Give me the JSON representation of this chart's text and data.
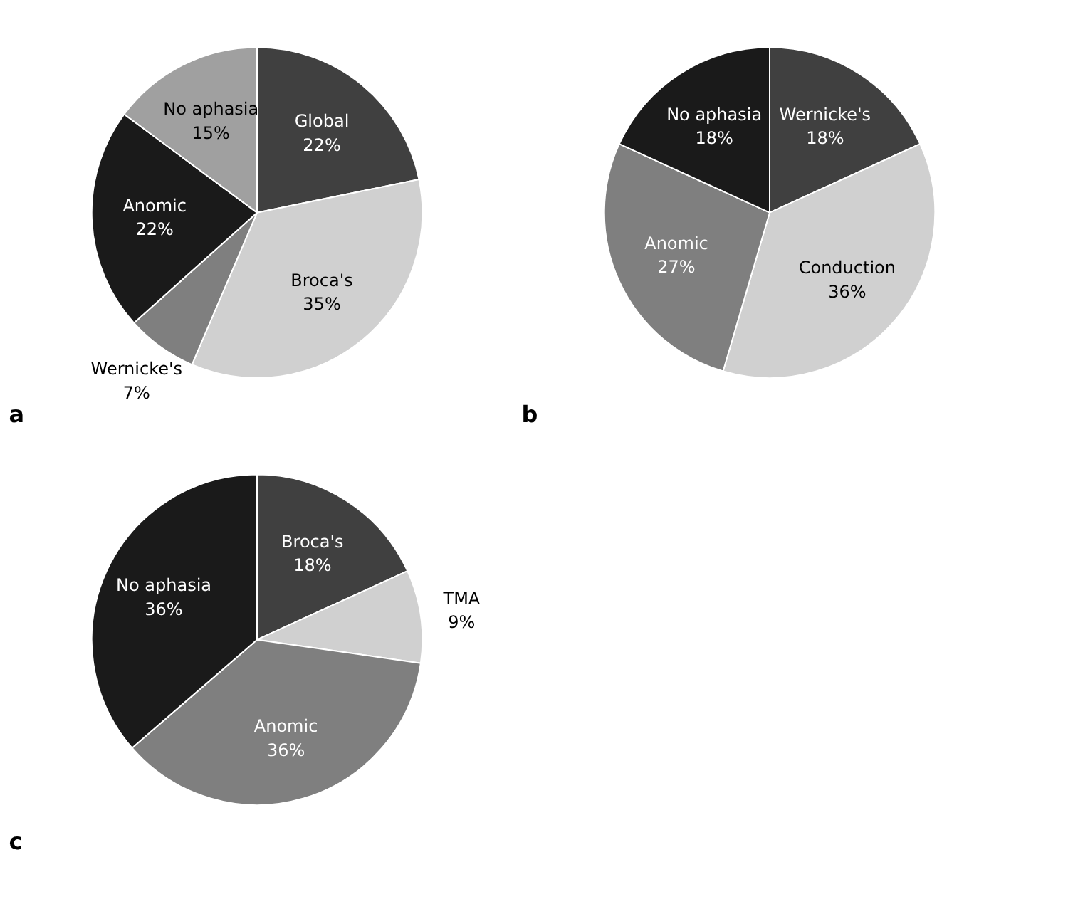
{
  "chart_data": [
    {
      "type": "pie",
      "annotations": [
        "a"
      ],
      "categories": [
        "Global",
        "Broca's",
        "Wernicke's",
        "Anomic",
        "No aphasia"
      ],
      "values": [
        22,
        35,
        7,
        22,
        15
      ],
      "value_labels": [
        "22%",
        "35%",
        "7%",
        "22%",
        "15%"
      ],
      "colors": [
        "#404040",
        "#d0d0d0",
        "#7f7f7f",
        "#1a1a1a",
        "#a0a0a0"
      ]
    },
    {
      "type": "pie",
      "annotations": [
        "b"
      ],
      "categories": [
        "Wernicke's",
        "Conduction",
        "Anomic",
        "No aphasia"
      ],
      "values": [
        18,
        36,
        27,
        18
      ],
      "value_labels": [
        "18%",
        "36%",
        "27%",
        "18%"
      ],
      "colors": [
        "#404040",
        "#d0d0d0",
        "#7f7f7f",
        "#1a1a1a"
      ]
    },
    {
      "type": "pie",
      "annotations": [
        "c"
      ],
      "categories": [
        "Broca's",
        "TMA",
        "Anomic",
        "No aphasia"
      ],
      "values": [
        18,
        9,
        36,
        36
      ],
      "value_labels": [
        "18%",
        "9%",
        "36%",
        "36%"
      ],
      "colors": [
        "#404040",
        "#d0d0d0",
        "#7f7f7f",
        "#1a1a1a"
      ]
    }
  ]
}
